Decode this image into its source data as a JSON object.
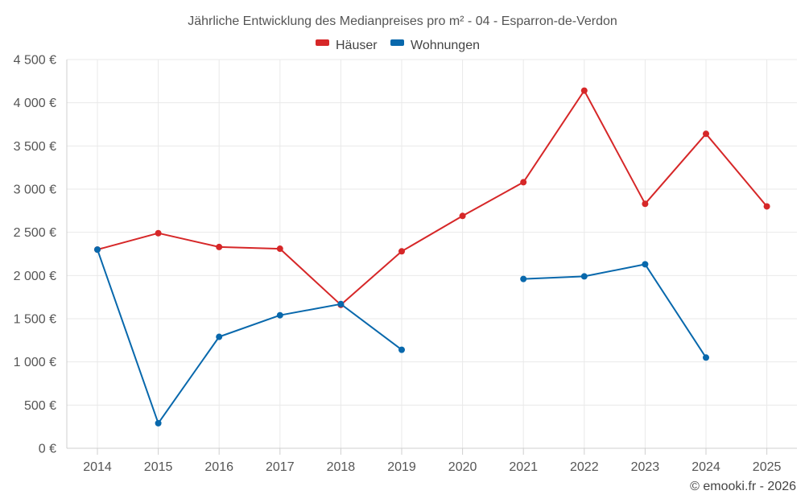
{
  "chart_data": {
    "type": "line",
    "title": "Jährliche Entwicklung des Medianpreises pro m² - 04 - Esparron-de-Verdon",
    "categories": [
      "2014",
      "2015",
      "2016",
      "2017",
      "2018",
      "2019",
      "2020",
      "2021",
      "2022",
      "2023",
      "2024",
      "2025"
    ],
    "series": [
      {
        "name": "Häuser",
        "color": "#d62728",
        "values": [
          2300,
          2490,
          2330,
          2310,
          1660,
          2280,
          2690,
          3080,
          4140,
          2830,
          3640,
          2800
        ]
      },
      {
        "name": "Wohnungen",
        "color": "#0868ac",
        "values": [
          2300,
          290,
          1290,
          1540,
          1670,
          1140,
          null,
          1960,
          1990,
          2130,
          1050,
          null
        ]
      }
    ],
    "ylim": [
      0,
      4500
    ],
    "yticks": [
      0,
      500,
      1000,
      1500,
      2000,
      2500,
      3000,
      3500,
      4000,
      4500
    ],
    "ytick_labels": [
      "0 €",
      "500 €",
      "1 000 €",
      "1 500 €",
      "2 000 €",
      "2 500 €",
      "3 000 €",
      "3 500 €",
      "4 000 €",
      "4 500 €"
    ],
    "xlabel": "",
    "ylabel": "",
    "grid": true,
    "legend_position": "top-center"
  },
  "credit": "© emooki.fr - 2026"
}
